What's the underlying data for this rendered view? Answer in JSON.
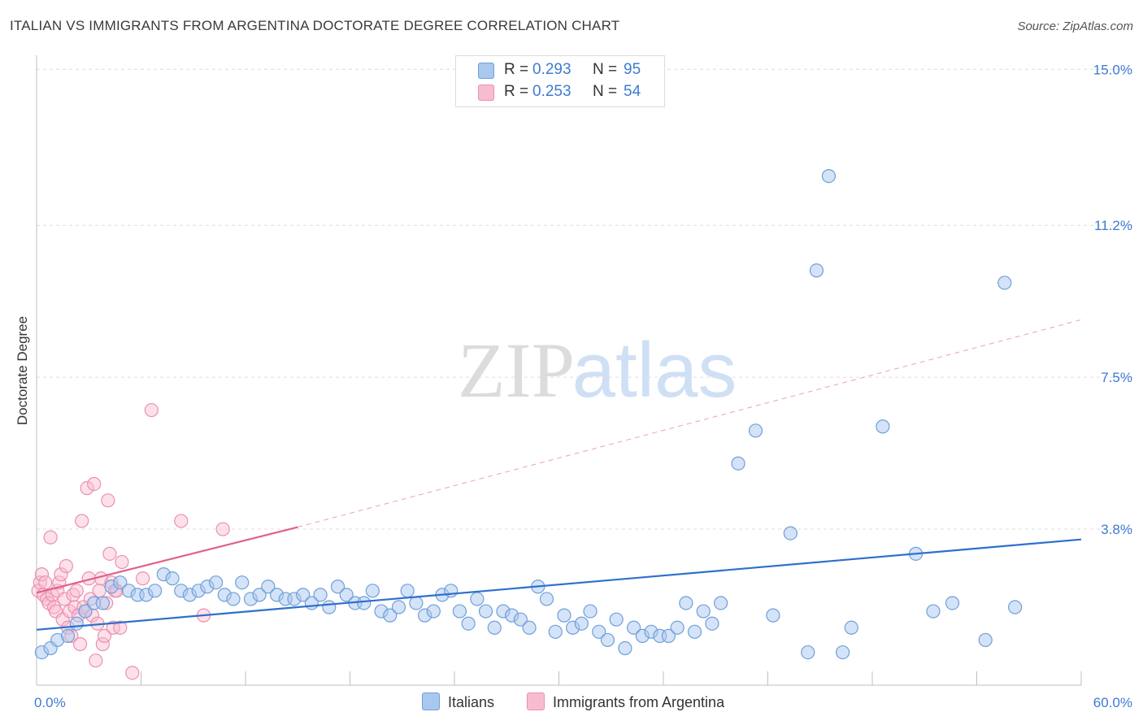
{
  "title": "ITALIAN VS IMMIGRANTS FROM ARGENTINA DOCTORATE DEGREE CORRELATION CHART",
  "source": "Source: ZipAtlas.com",
  "watermark": {
    "zip": "ZIP",
    "atlas": "atlas"
  },
  "colors": {
    "blue_fill": "#a9c8f0",
    "blue_stroke": "#6f9fd9",
    "blue_line": "#2f6fce",
    "pink_fill": "#f8bcd0",
    "pink_stroke": "#ec8fae",
    "pink_line": "#e0608a",
    "axis_text": "#3d7bd1"
  },
  "legend": {
    "rows": [
      {
        "r_label": "R =",
        "r_value": "0.293",
        "n_label": "N =",
        "n_value": "95"
      },
      {
        "r_label": "R =",
        "r_value": "0.253",
        "n_label": "N =",
        "n_value": "54"
      }
    ]
  },
  "bottom_legend": {
    "italians": "Italians",
    "argentina": "Immigrants from Argentina"
  },
  "chart_data": {
    "type": "scatter",
    "title": "ITALIAN VS IMMIGRANTS FROM ARGENTINA DOCTORATE DEGREE CORRELATION CHART",
    "ylabel": "Doctorate Degree",
    "xlabel": "",
    "xlim": [
      0,
      60
    ],
    "ylim": [
      0,
      15.5
    ],
    "x_tick_labels": [
      "0.0%",
      "60.0%"
    ],
    "y_ticks": [
      3.8,
      7.5,
      11.2,
      15.0
    ],
    "y_tick_labels": [
      "3.8%",
      "7.5%",
      "11.2%",
      "15.0%"
    ],
    "legend_position": "top-center",
    "series": [
      {
        "name": "Italians",
        "R": 0.293,
        "N": 95,
        "trend": {
          "x": [
            0,
            60
          ],
          "y": [
            1.35,
            3.55
          ],
          "dashed_extension": false
        },
        "points": [
          [
            0.3,
            0.8
          ],
          [
            0.8,
            0.9
          ],
          [
            1.2,
            1.1
          ],
          [
            1.8,
            1.2
          ],
          [
            2.3,
            1.5
          ],
          [
            2.8,
            1.8
          ],
          [
            3.3,
            2.0
          ],
          [
            3.8,
            2.0
          ],
          [
            4.3,
            2.4
          ],
          [
            4.8,
            2.5
          ],
          [
            5.3,
            2.3
          ],
          [
            5.8,
            2.2
          ],
          [
            6.3,
            2.2
          ],
          [
            6.8,
            2.3
          ],
          [
            7.3,
            2.7
          ],
          [
            7.8,
            2.6
          ],
          [
            8.3,
            2.3
          ],
          [
            8.8,
            2.2
          ],
          [
            9.3,
            2.3
          ],
          [
            9.8,
            2.4
          ],
          [
            10.3,
            2.5
          ],
          [
            10.8,
            2.2
          ],
          [
            11.3,
            2.1
          ],
          [
            11.8,
            2.5
          ],
          [
            12.3,
            2.1
          ],
          [
            12.8,
            2.2
          ],
          [
            13.3,
            2.4
          ],
          [
            13.8,
            2.2
          ],
          [
            14.3,
            2.1
          ],
          [
            14.8,
            2.1
          ],
          [
            15.3,
            2.2
          ],
          [
            15.8,
            2.0
          ],
          [
            16.3,
            2.2
          ],
          [
            16.8,
            1.9
          ],
          [
            17.3,
            2.4
          ],
          [
            17.8,
            2.2
          ],
          [
            18.3,
            2.0
          ],
          [
            18.8,
            2.0
          ],
          [
            19.3,
            2.3
          ],
          [
            19.8,
            1.8
          ],
          [
            20.3,
            1.7
          ],
          [
            20.8,
            1.9
          ],
          [
            21.3,
            2.3
          ],
          [
            21.8,
            2.0
          ],
          [
            22.3,
            1.7
          ],
          [
            22.8,
            1.8
          ],
          [
            23.3,
            2.2
          ],
          [
            23.8,
            2.3
          ],
          [
            24.3,
            1.8
          ],
          [
            24.8,
            1.5
          ],
          [
            25.3,
            2.1
          ],
          [
            25.8,
            1.8
          ],
          [
            26.3,
            1.4
          ],
          [
            26.8,
            1.8
          ],
          [
            27.3,
            1.7
          ],
          [
            27.8,
            1.6
          ],
          [
            28.3,
            1.4
          ],
          [
            28.8,
            2.4
          ],
          [
            29.3,
            2.1
          ],
          [
            29.8,
            1.3
          ],
          [
            30.3,
            1.7
          ],
          [
            30.8,
            1.4
          ],
          [
            31.3,
            1.5
          ],
          [
            31.8,
            1.8
          ],
          [
            32.3,
            1.3
          ],
          [
            32.8,
            1.1
          ],
          [
            33.3,
            1.6
          ],
          [
            33.8,
            0.9
          ],
          [
            34.3,
            1.4
          ],
          [
            34.8,
            1.2
          ],
          [
            35.3,
            1.3
          ],
          [
            35.8,
            1.2
          ],
          [
            36.3,
            1.2
          ],
          [
            36.8,
            1.4
          ],
          [
            37.3,
            2.0
          ],
          [
            37.8,
            1.3
          ],
          [
            38.3,
            1.8
          ],
          [
            38.8,
            1.5
          ],
          [
            39.3,
            2.0
          ],
          [
            40.3,
            5.4
          ],
          [
            41.3,
            6.2
          ],
          [
            42.3,
            1.7
          ],
          [
            43.3,
            3.7
          ],
          [
            44.3,
            0.8
          ],
          [
            44.8,
            10.1
          ],
          [
            45.5,
            12.4
          ],
          [
            46.3,
            0.8
          ],
          [
            46.8,
            1.4
          ],
          [
            48.6,
            6.3
          ],
          [
            50.5,
            3.2
          ],
          [
            51.5,
            1.8
          ],
          [
            52.6,
            2.0
          ],
          [
            54.5,
            1.1
          ],
          [
            55.6,
            9.8
          ],
          [
            56.2,
            1.9
          ]
        ]
      },
      {
        "name": "Immigrants from Argentina",
        "R": 0.253,
        "N": 54,
        "trend": {
          "x": [
            0,
            15.0
          ],
          "y": [
            2.25,
            3.85
          ],
          "dashed_extension_to": [
            60,
            8.9
          ]
        },
        "points": [
          [
            0.1,
            2.3
          ],
          [
            0.2,
            2.5
          ],
          [
            0.3,
            2.7
          ],
          [
            0.4,
            2.2
          ],
          [
            0.5,
            2.5
          ],
          [
            0.6,
            2.1
          ],
          [
            0.7,
            2.0
          ],
          [
            0.8,
            3.6
          ],
          [
            0.9,
            2.2
          ],
          [
            1.0,
            1.9
          ],
          [
            1.1,
            1.8
          ],
          [
            1.2,
            2.3
          ],
          [
            1.3,
            2.5
          ],
          [
            1.4,
            2.7
          ],
          [
            1.5,
            1.6
          ],
          [
            1.6,
            2.1
          ],
          [
            1.7,
            2.9
          ],
          [
            1.8,
            1.4
          ],
          [
            1.9,
            1.8
          ],
          [
            2.0,
            1.2
          ],
          [
            2.1,
            2.2
          ],
          [
            2.2,
            1.9
          ],
          [
            2.3,
            2.3
          ],
          [
            2.4,
            1.7
          ],
          [
            2.5,
            1.0
          ],
          [
            2.6,
            4.0
          ],
          [
            2.7,
            1.9
          ],
          [
            2.8,
            1.8
          ],
          [
            2.9,
            4.8
          ],
          [
            3.0,
            2.6
          ],
          [
            3.1,
            2.1
          ],
          [
            3.2,
            1.7
          ],
          [
            3.3,
            4.9
          ],
          [
            3.4,
            0.6
          ],
          [
            3.5,
            1.5
          ],
          [
            3.6,
            2.3
          ],
          [
            3.7,
            2.6
          ],
          [
            3.8,
            1.0
          ],
          [
            3.9,
            1.2
          ],
          [
            4.0,
            2.0
          ],
          [
            4.1,
            4.5
          ],
          [
            4.2,
            3.2
          ],
          [
            4.3,
            2.5
          ],
          [
            4.4,
            1.4
          ],
          [
            4.5,
            2.3
          ],
          [
            4.6,
            2.3
          ],
          [
            4.8,
            1.4
          ],
          [
            4.9,
            3.0
          ],
          [
            5.5,
            0.3
          ],
          [
            6.1,
            2.6
          ],
          [
            6.6,
            6.7
          ],
          [
            8.3,
            4.0
          ],
          [
            9.6,
            1.7
          ],
          [
            10.7,
            3.8
          ]
        ]
      }
    ]
  }
}
